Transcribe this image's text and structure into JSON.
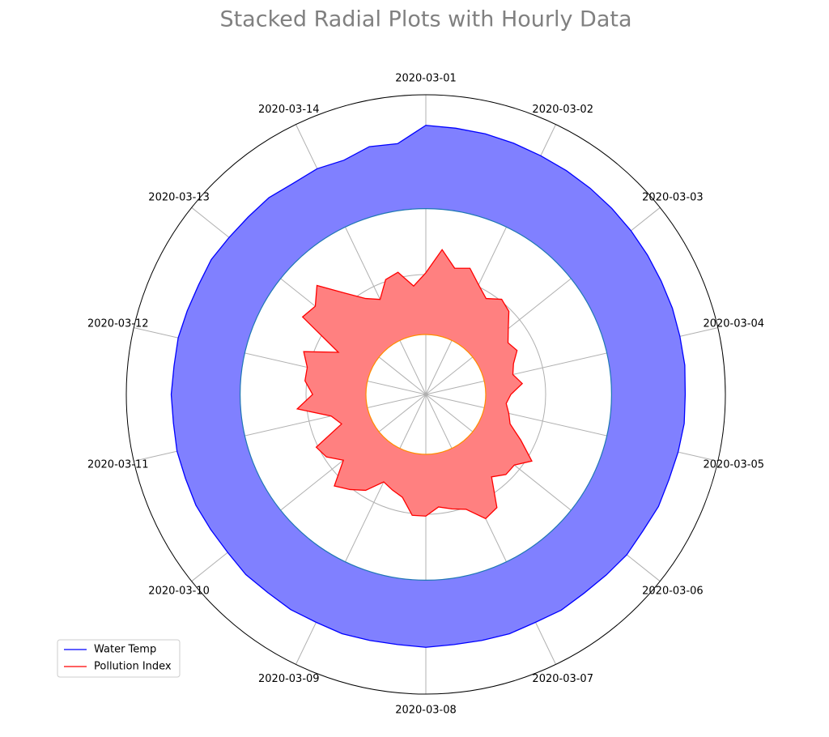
{
  "chart_data": {
    "type": "radial_band",
    "title": "Stacked Radial Plots with Hourly Data",
    "xlim": [
      0,
      336
    ],
    "x": [
      0,
      6,
      12,
      18,
      24,
      30,
      36,
      42,
      48,
      54,
      60,
      66,
      72,
      78,
      84,
      90,
      96,
      102,
      108,
      114,
      120,
      126,
      132,
      138,
      144,
      150,
      156,
      162,
      168,
      174,
      180,
      186,
      192,
      198,
      204,
      210,
      216,
      222,
      228,
      234,
      240,
      246,
      252,
      258,
      264,
      270,
      276,
      282,
      288,
      294,
      300,
      306,
      312,
      318,
      324,
      330
    ],
    "xticks": [
      {
        "value": 0,
        "label": "2020-03-01"
      },
      {
        "value": 24,
        "label": "2020-03-02"
      },
      {
        "value": 48,
        "label": "2020-03-03"
      },
      {
        "value": 72,
        "label": "2020-03-04"
      },
      {
        "value": 96,
        "label": "2020-03-05"
      },
      {
        "value": 120,
        "label": "2020-03-06"
      },
      {
        "value": 144,
        "label": "2020-03-07"
      },
      {
        "value": 168,
        "label": "2020-03-08"
      },
      {
        "value": 192,
        "label": "2020-03-09"
      },
      {
        "value": 216,
        "label": "2020-03-10"
      },
      {
        "value": 240,
        "label": "2020-03-11"
      },
      {
        "value": 264,
        "label": "2020-03-12"
      },
      {
        "value": 288,
        "label": "2020-03-13"
      },
      {
        "value": 312,
        "label": "2020-03-14"
      }
    ],
    "ylim": [
      0,
      50
    ],
    "yticks": [
      20,
      40
    ],
    "grid": true,
    "legend": "lower left",
    "series": [
      {
        "name": "Water Temp",
        "color": "#0000ff",
        "fill": "#8080ff",
        "base_color": "#1f77b4",
        "base": 31,
        "values": [
          13.9,
          13.7,
          13.6,
          13.4,
          13.2,
          13.1,
          13.0,
          12.9,
          12.8,
          12.7,
          12.6,
          12.6,
          12.5,
          12.5,
          12.3,
          12.4,
          12.2,
          12.0,
          12.1,
          11.8,
          11.9,
          11.6,
          11.4,
          11.5,
          11.2,
          11.3,
          11.1,
          11.0,
          11.2,
          11.0,
          11.1,
          11.3,
          11.2,
          11.4,
          11.3,
          11.5,
          11.3,
          11.4,
          11.6,
          11.5,
          11.6,
          11.4,
          11.5,
          11.3,
          11.4,
          11.2,
          11.1,
          11.3,
          11.0,
          10.9,
          11.0,
          10.6,
          10.8,
          10.4,
          11.4,
          11.1
        ]
      },
      {
        "name": "Pollution Index",
        "color": "#ff0000",
        "fill": "#ff8080",
        "base_color": "#ff8c00",
        "base": 10,
        "values": [
          10.3,
          14.3,
          11.6,
          12.3,
          10.3,
          8.9,
          10.3,
          9.6,
          7.6,
          6.2,
          6.9,
          5.5,
          4.9,
          6.2,
          4.2,
          3.5,
          4.2,
          4.9,
          7.6,
          10.9,
          8.9,
          8.9,
          7.6,
          12.3,
          13.0,
          10.3,
          9.6,
          8.9,
          10.3,
          10.3,
          7.6,
          6.9,
          6.2,
          8.9,
          10.3,
          11.6,
          7.6,
          9.6,
          10.3,
          4.9,
          6.2,
          11.6,
          8.9,
          10.3,
          10.3,
          11.6,
          6.2,
          14.3,
          13.6,
          15.7,
          11.6,
          8.9,
          7.6,
          10.3,
          10.9,
          8.2
        ]
      }
    ]
  }
}
